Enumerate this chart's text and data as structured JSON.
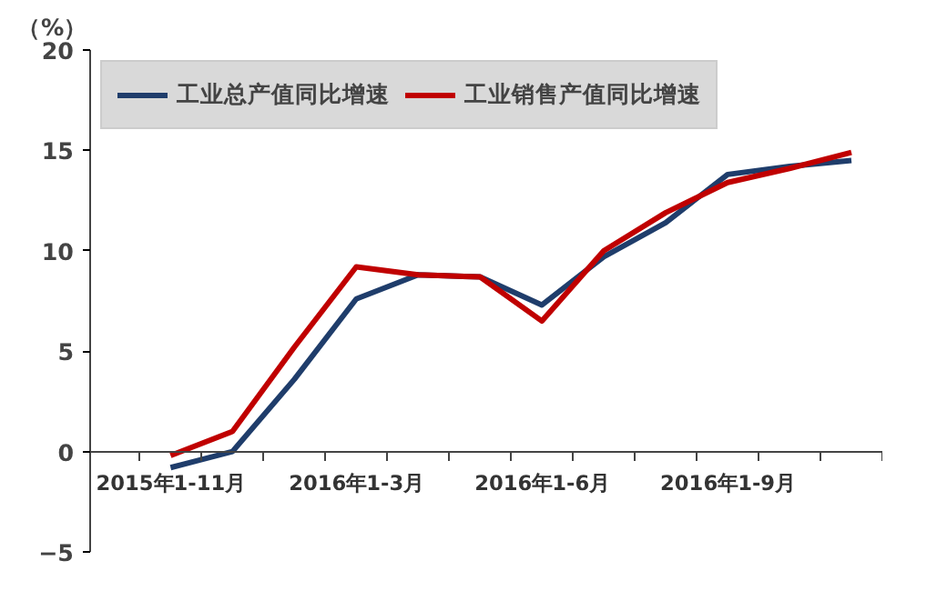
{
  "chart_data": {
    "type": "line",
    "ylabel": "（%）",
    "categories": [
      "2015年1-11月",
      null,
      null,
      "2016年1-3月",
      null,
      null,
      "2016年1-6月",
      null,
      null,
      "2016年1-9月",
      null,
      null
    ],
    "series": [
      {
        "name": "工业总产值同比增速",
        "color": "#1f3d6b",
        "values": [
          -0.8,
          0.0,
          3.6,
          7.6,
          8.8,
          8.7,
          7.3,
          9.7,
          11.4,
          13.8,
          14.2,
          14.5
        ]
      },
      {
        "name": "工业销售产值同比增速",
        "color": "#c00000",
        "values": [
          -0.2,
          1.0,
          5.2,
          9.2,
          8.8,
          8.7,
          6.5,
          10.0,
          11.9,
          13.4,
          14.1,
          14.9
        ]
      }
    ],
    "ylim": [
      -5,
      20
    ],
    "yticks": [
      -5,
      0,
      5,
      10,
      15,
      20
    ],
    "grid": false,
    "legend": "top",
    "marker": "none",
    "line_style": "solid"
  }
}
